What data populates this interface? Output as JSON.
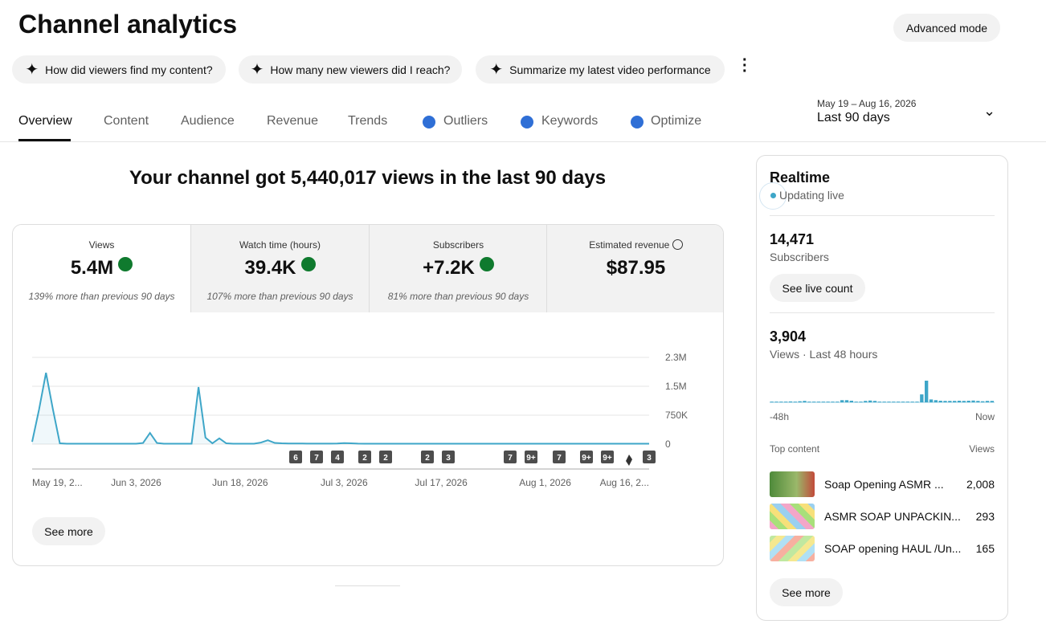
{
  "header": {
    "title": "Channel analytics",
    "advanced_mode": "Advanced mode"
  },
  "prompts": [
    "How did viewers find my content?",
    "How many new viewers did I reach?",
    "Summarize my latest video performance"
  ],
  "tabs": [
    "Overview",
    "Content",
    "Audience",
    "Revenue",
    "Trends",
    "Outliers",
    "Keywords",
    "Optimize"
  ],
  "date_range": {
    "dates": "May 19 – Aug 16, 2026",
    "label": "Last 90 days"
  },
  "headline": "Your channel got 5,440,017 views in the last 90 days",
  "metrics": [
    {
      "label": "Views",
      "value": "5.4M",
      "note": "139% more than previous 90 days"
    },
    {
      "label": "Watch time (hours)",
      "value": "39.4K",
      "note": "107% more than previous 90 days"
    },
    {
      "label": "Subscribers",
      "value": "+7.2K",
      "note": "81% more than previous 90 days"
    },
    {
      "label": "Estimated revenue",
      "value": "$87.95"
    }
  ],
  "chart_data": [
    {
      "type": "line",
      "color": "#3ea6c8",
      "grid": true,
      "categories": [
        "May 19, 2...",
        null,
        null,
        null,
        null,
        null,
        null,
        null,
        null,
        null,
        null,
        null,
        null,
        null,
        null,
        "Jun 3, 2026",
        null,
        null,
        null,
        null,
        null,
        null,
        null,
        null,
        null,
        null,
        null,
        null,
        null,
        null,
        "Jun 18, 2026",
        null,
        null,
        null,
        null,
        null,
        null,
        null,
        null,
        null,
        null,
        null,
        null,
        null,
        null,
        "Jul 3, 2026",
        null,
        null,
        null,
        null,
        null,
        null,
        null,
        null,
        null,
        null,
        null,
        null,
        null,
        "Jul 17, 2026",
        null,
        null,
        null,
        null,
        null,
        null,
        null,
        null,
        null,
        null,
        null,
        null,
        null,
        null,
        "Aug 1, 2026",
        null,
        null,
        null,
        null,
        null,
        null,
        null,
        null,
        null,
        null,
        null,
        null,
        null,
        null,
        "Aug 16, 2..."
      ],
      "values": [
        60000,
        900000,
        1850000,
        900000,
        20000,
        10000,
        10000,
        10000,
        10000,
        10000,
        10000,
        10000,
        10000,
        10000,
        10000,
        10000,
        30000,
        290000,
        30000,
        10000,
        10000,
        10000,
        10000,
        10000,
        1480000,
        170000,
        20000,
        150000,
        20000,
        10000,
        10000,
        10000,
        10000,
        40000,
        100000,
        30000,
        20000,
        15000,
        15000,
        15000,
        12000,
        12000,
        12000,
        12000,
        15000,
        25000,
        20000,
        12000,
        10000,
        10000,
        10000,
        10000,
        10000,
        10000,
        10000,
        10000,
        10000,
        10000,
        10000,
        10000,
        10000,
        10000,
        10000,
        10000,
        10000,
        10000,
        10000,
        10000,
        10000,
        10000,
        10000,
        10000,
        10000,
        10000,
        10000,
        10000,
        10000,
        10000,
        10000,
        10000,
        10000,
        10000,
        10000,
        10000,
        10000,
        10000,
        10000,
        10000,
        10000,
        10000
      ],
      "ylim": [
        0,
        2250000
      ],
      "yticks": [
        0,
        {
          "value": 750000,
          "label": "750K"
        },
        {
          "value": 1500000,
          "label": "1.5M"
        },
        {
          "value": 2250000,
          "label": "2.3M"
        }
      ],
      "upload_markers": [
        "6",
        "7",
        "4",
        "2",
        "2",
        "2",
        "3",
        "7",
        "9+",
        "7",
        "9+",
        "9+",
        "3"
      ]
    },
    {
      "type": "bar",
      "color": "#3ea6c8",
      "categories": [
        "-48h",
        null,
        null,
        null,
        null,
        null,
        null,
        null,
        null,
        null,
        null,
        null,
        null,
        null,
        null,
        null,
        null,
        null,
        null,
        null,
        null,
        null,
        null,
        null,
        null,
        null,
        null,
        null,
        null,
        null,
        null,
        null,
        null,
        null,
        null,
        null,
        null,
        null,
        null,
        null,
        null,
        null,
        null,
        null,
        null,
        null,
        null,
        "Now"
      ],
      "values": [
        20,
        20,
        20,
        20,
        25,
        20,
        30,
        40,
        20,
        20,
        20,
        20,
        20,
        20,
        20,
        60,
        60,
        45,
        20,
        20,
        40,
        50,
        40,
        20,
        20,
        20,
        20,
        20,
        20,
        20,
        20,
        20,
        220,
        600,
        80,
        60,
        45,
        40,
        40,
        40,
        45,
        40,
        45,
        50,
        40,
        30,
        40,
        40
      ]
    }
  ],
  "see_more": "See more",
  "realtime": {
    "title": "Realtime",
    "status": "Updating live",
    "subscribers": "14,471",
    "subscribers_label": "Subscribers",
    "live_count": "See live count",
    "views": "3,904",
    "views_label": "Views · Last 48 hours",
    "top_content": {
      "header": "Top content",
      "views_header": "Views",
      "rows": [
        [
          "Soap Opening ASMR ...",
          "2,008"
        ],
        [
          "ASMR SOAP UNPACKIN...",
          "293"
        ],
        [
          "SOAP opening HAUL /Un...",
          "165"
        ]
      ]
    },
    "see_more": "See more"
  }
}
